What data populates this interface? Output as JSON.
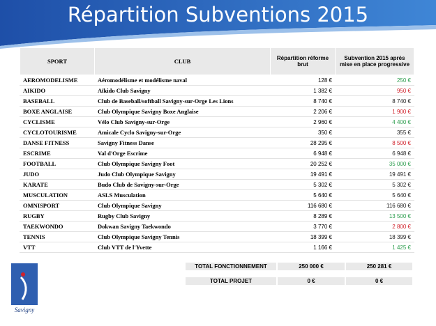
{
  "header": {
    "title": "Répartition Subventions 2015"
  },
  "table": {
    "columns": [
      "SPORT",
      "CLUB",
      "Répartition réforme brut",
      "Subvention 2015 après mise en place progressive"
    ],
    "rows": [
      {
        "sport": "AEROMODELISME",
        "club": "Aéromodélisme et modélisme naval",
        "brut": "128 €",
        "subvention": "250 €",
        "color": "#2e9e4f"
      },
      {
        "sport": "AIKIDO",
        "club": "Aïkido Club Savigny",
        "brut": "1 382 €",
        "subvention": "950 €",
        "color": "#d0202a"
      },
      {
        "sport": "BASEBALL",
        "club": "Club de Baseball/softball Savigny-sur-Orge Les Lions",
        "brut": "8 740 €",
        "subvention": "8 740 €",
        "color": "#222222"
      },
      {
        "sport": "BOXE ANGLAISE",
        "club": "Club Olympique Savigny Boxe Anglaise",
        "brut": "2 206 €",
        "subvention": "1 900 €",
        "color": "#d0202a"
      },
      {
        "sport": "CYCLISME",
        "club": "Vélo Club Savigny-sur-Orge",
        "brut": "2 960 €",
        "subvention": "4 400 €",
        "color": "#2e9e4f"
      },
      {
        "sport": "CYCLOTOURISME",
        "club": "Amicale Cyclo Savigny-sur-Orge",
        "brut": "350 €",
        "subvention": "355 €",
        "color": "#222222"
      },
      {
        "sport": "DANSE FITNESS",
        "club": "Savigny Fitness Danse",
        "brut": "28 295 €",
        "subvention": "8 500 €",
        "color": "#d0202a"
      },
      {
        "sport": "ESCRIME",
        "club": "Val d'Orge Escrime",
        "brut": "6 948 €",
        "subvention": "6 948 €",
        "color": "#222222"
      },
      {
        "sport": "FOOTBALL",
        "club": "Club Olympique Savigny Foot",
        "brut": "20 252 €",
        "subvention": "35 000 €",
        "color": "#2e9e4f"
      },
      {
        "sport": "JUDO",
        "club": "Judo Club Olympique Savigny",
        "brut": "19 491 €",
        "subvention": "19 491 €",
        "color": "#222222"
      },
      {
        "sport": "KARATE",
        "club": "Budo Club de Savigny-sur-Orge",
        "brut": "5 302 €",
        "subvention": "5 302 €",
        "color": "#222222"
      },
      {
        "sport": "MUSCULATION",
        "club": "ASLS Musculation",
        "brut": "5 640 €",
        "subvention": "5 640 €",
        "color": "#222222"
      },
      {
        "sport": "OMNISPORT",
        "club": "Club Olympique Savigny",
        "brut": "116 680 €",
        "subvention": "116 680 €",
        "color": "#222222"
      },
      {
        "sport": "RUGBY",
        "club": "Rugby Club Savigny",
        "brut": "8 289 €",
        "subvention": "13 500 €",
        "color": "#2e9e4f"
      },
      {
        "sport": "TAEKWONDO",
        "club": "Dokwan Savigny Taekwondo",
        "brut": "3 770 €",
        "subvention": "2 800 €",
        "color": "#d0202a"
      },
      {
        "sport": "TENNIS",
        "club": "Club Olympique Savigny Tennis",
        "brut": "18 399 €",
        "subvention": "18 399 €",
        "color": "#222222"
      },
      {
        "sport": "VTT",
        "club": "Club VTT de l'Yvette",
        "brut": "1 166 €",
        "subvention": "1 425 €",
        "color": "#2e9e4f"
      }
    ]
  },
  "totals": [
    {
      "label": "TOTAL FONCTIONNEMENT",
      "brut": "250 000 €",
      "subvention": "250 281 €"
    },
    {
      "label": "TOTAL PROJET",
      "brut": "0 €",
      "subvention": "0 €"
    }
  ],
  "logo": {
    "text": "Savigny"
  }
}
